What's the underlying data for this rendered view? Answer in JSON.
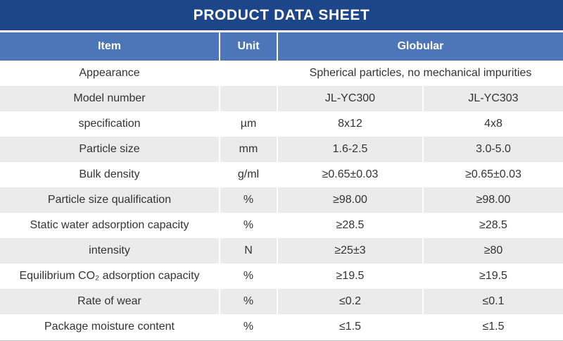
{
  "title": "PRODUCT DATA SHEET",
  "colors": {
    "title_band": "#1d4589",
    "header_row": "#4d76b9",
    "alt_row": "#ebebeb",
    "body_text": "#333333"
  },
  "table": {
    "headers": {
      "item": "Item",
      "unit": "Unit",
      "group": "Globular"
    },
    "rows": [
      {
        "item": "Appearance",
        "unit": "",
        "span": "Spherical particles, no mechanical impurities"
      },
      {
        "item": "Model number",
        "unit": "",
        "v1": "JL-YC300",
        "v2": "JL-YC303"
      },
      {
        "item": "specification",
        "unit": "µm",
        "v1": "8x12",
        "v2": "4x8"
      },
      {
        "item": "Particle size",
        "unit": "mm",
        "v1": "1.6-2.5",
        "v2": "3.0-5.0"
      },
      {
        "item": "Bulk density",
        "unit": "g/ml",
        "v1": "≥0.65±0.03",
        "v2": "≥0.65±0.03"
      },
      {
        "item": "Particle size qualification",
        "unit": "%",
        "v1": "≥98.00",
        "v2": "≥98.00"
      },
      {
        "item": "Static water adsorption capacity",
        "unit": "%",
        "v1": "≥28.5",
        "v2": "≥28.5"
      },
      {
        "item": "intensity",
        "unit": "N",
        "v1": "≥25±3",
        "v2": "≥80"
      },
      {
        "item": "Equilibrium CO₂ adsorption capacity",
        "unit": "%",
        "v1": "≥19.5",
        "v2": "≥19.5"
      },
      {
        "item": "Rate of wear",
        "unit": "%",
        "v1": "≤0.2",
        "v2": "≤0.1"
      },
      {
        "item": "Package moisture content",
        "unit": "%",
        "v1": "≤1.5",
        "v2": "≤1.5"
      }
    ]
  }
}
